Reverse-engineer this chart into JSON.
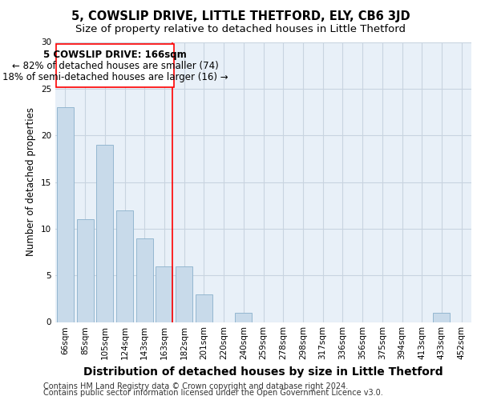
{
  "title": "5, COWSLIP DRIVE, LITTLE THETFORD, ELY, CB6 3JD",
  "subtitle": "Size of property relative to detached houses in Little Thetford",
  "xlabel": "Distribution of detached houses by size in Little Thetford",
  "ylabel": "Number of detached properties",
  "categories": [
    "66sqm",
    "85sqm",
    "105sqm",
    "124sqm",
    "143sqm",
    "163sqm",
    "182sqm",
    "201sqm",
    "220sqm",
    "240sqm",
    "259sqm",
    "278sqm",
    "298sqm",
    "317sqm",
    "336sqm",
    "356sqm",
    "375sqm",
    "394sqm",
    "413sqm",
    "433sqm",
    "452sqm"
  ],
  "values": [
    23,
    11,
    19,
    12,
    9,
    6,
    6,
    3,
    0,
    1,
    0,
    0,
    0,
    0,
    0,
    0,
    0,
    0,
    0,
    1,
    0
  ],
  "bar_color": "#c8daea",
  "bar_edge_color": "#8ab0cc",
  "highlight_line_index": 5,
  "annotation_title": "5 COWSLIP DRIVE: 166sqm",
  "annotation_line1": "← 82% of detached houses are smaller (74)",
  "annotation_line2": "18% of semi-detached houses are larger (16) →",
  "ylim": [
    0,
    30
  ],
  "yticks": [
    0,
    5,
    10,
    15,
    20,
    25,
    30
  ],
  "axes_bg_color": "#e8f0f8",
  "grid_color": "#c8d4e0",
  "footer1": "Contains HM Land Registry data © Crown copyright and database right 2024.",
  "footer2": "Contains public sector information licensed under the Open Government Licence v3.0.",
  "title_fontsize": 10.5,
  "subtitle_fontsize": 9.5,
  "xlabel_fontsize": 10,
  "ylabel_fontsize": 8.5,
  "tick_fontsize": 7.5,
  "annotation_fontsize": 8.5,
  "footer_fontsize": 7
}
